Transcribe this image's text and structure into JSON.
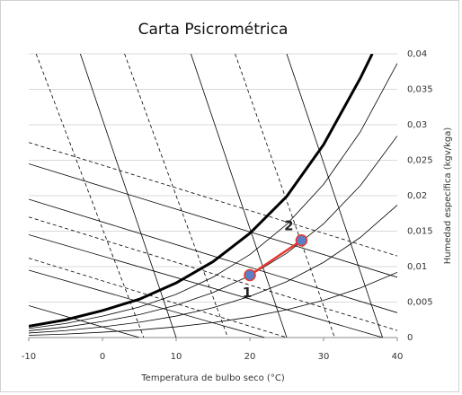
{
  "chart_data": {
    "type": "line",
    "title": "Carta Psicrométrica",
    "xlabel": "Temperatura de bulbo seco (°C)",
    "y2label": "Humedad específica (kgv/kga)",
    "xlim": [
      -10,
      40
    ],
    "xticks": [
      -10,
      0,
      10,
      20,
      30,
      40
    ],
    "y2lim": [
      0,
      0.04
    ],
    "y2ticks": [
      0,
      {
        "value": 0.005,
        "label": "0,005"
      },
      {
        "value": 0.01,
        "label": "0,01"
      },
      {
        "value": 0.015,
        "label": "0,015"
      },
      {
        "value": 0.02,
        "label": "0,02"
      },
      {
        "value": 0.025,
        "label": "0,025"
      },
      {
        "value": 0.03,
        "label": "0,03"
      },
      {
        "value": 0.035,
        "label": "0,035"
      },
      {
        "value": 0.04,
        "label": "0,04"
      }
    ],
    "grid": true,
    "series": [
      {
        "axis": "y2",
        "color": "#000000",
        "width": 3,
        "dash": false,
        "x": [
          -10,
          -5,
          0,
          5,
          10,
          15,
          20,
          25,
          30,
          35,
          36.6
        ],
        "values": [
          0.0016,
          0.0025,
          0.0038,
          0.0054,
          0.0077,
          0.0107,
          0.0147,
          0.0199,
          0.0272,
          0.0366,
          0.04
        ]
      },
      {
        "axis": "y2",
        "color": "#000000",
        "width": 0.8,
        "dash": false,
        "x": [
          -10,
          -5,
          0,
          5,
          10,
          15,
          20,
          25,
          30,
          35,
          40
        ],
        "values": [
          0.00128,
          0.00198,
          0.00302,
          0.00431,
          0.00609,
          0.00851,
          0.0117,
          0.01596,
          0.0216,
          0.02903,
          0.03867
        ]
      },
      {
        "axis": "y2",
        "color": "#000000",
        "width": 0.8,
        "dash": false,
        "x": [
          -10,
          -5,
          0,
          5,
          10,
          15,
          20,
          25,
          30,
          35,
          40
        ],
        "values": [
          0.00096,
          0.00148,
          0.00226,
          0.00323,
          0.00456,
          0.00634,
          0.00873,
          0.01189,
          0.01604,
          0.02144,
          0.02844
        ]
      },
      {
        "axis": "y2",
        "color": "#000000",
        "width": 0.8,
        "dash": false,
        "x": [
          -10,
          -5,
          0,
          5,
          10,
          15,
          20,
          25,
          30,
          35,
          40
        ],
        "values": [
          0.00064,
          0.00098,
          0.0015,
          0.00215,
          0.00303,
          0.00421,
          0.0058,
          0.00788,
          0.0106,
          0.01413,
          0.01868
        ]
      },
      {
        "axis": "y2",
        "color": "#000000",
        "width": 0.8,
        "dash": false,
        "x": [
          -10,
          -5,
          0,
          5,
          10,
          15,
          20,
          25,
          30,
          35,
          40
        ],
        "values": [
          0.00032,
          0.00049,
          0.00075,
          0.00107,
          0.00151,
          0.0021,
          0.00289,
          0.00392,
          0.00525,
          0.00699,
          0.0092
        ]
      },
      {
        "axis": "y2",
        "color": "#000000",
        "width": 0.8,
        "dash": true,
        "x": [
          -9,
          5.6
        ],
        "values": [
          0.04,
          0
        ]
      },
      {
        "axis": "y2",
        "color": "#000000",
        "width": 0.8,
        "dash": true,
        "x": [
          3,
          17
        ],
        "values": [
          0.04,
          0
        ]
      },
      {
        "axis": "y2",
        "color": "#000000",
        "width": 0.8,
        "dash": true,
        "x": [
          18,
          31.5
        ],
        "values": [
          0.04,
          0
        ]
      },
      {
        "axis": "y2",
        "color": "#000000",
        "width": 0.8,
        "dash": false,
        "x": [
          -3,
          10
        ],
        "values": [
          0.04,
          0
        ]
      },
      {
        "axis": "y2",
        "color": "#000000",
        "width": 0.8,
        "dash": false,
        "x": [
          12,
          25
        ],
        "values": [
          0.04,
          0
        ]
      },
      {
        "axis": "y2",
        "color": "#000000",
        "width": 0.8,
        "dash": false,
        "x": [
          25,
          38
        ],
        "values": [
          0.04,
          0
        ]
      },
      {
        "axis": "y2",
        "color": "#000000",
        "width": 0.8,
        "dash": false,
        "x": [
          -10,
          40
        ],
        "values": [
          0.0245,
          0.0085
        ]
      },
      {
        "axis": "y2",
        "color": "#000000",
        "width": 0.8,
        "dash": false,
        "x": [
          -10,
          40
        ],
        "values": [
          0.0195,
          0.0035
        ]
      },
      {
        "axis": "y2",
        "color": "#000000",
        "width": 0.8,
        "dash": false,
        "x": [
          -10,
          38
        ],
        "values": [
          0.0145,
          0
        ]
      },
      {
        "axis": "y2",
        "color": "#000000",
        "width": 0.8,
        "dash": false,
        "x": [
          -10,
          22
        ],
        "values": [
          0.0095,
          0
        ]
      },
      {
        "axis": "y2",
        "color": "#000000",
        "width": 0.8,
        "dash": false,
        "x": [
          -10,
          5
        ],
        "values": [
          0.0045,
          0
        ]
      },
      {
        "axis": "y2",
        "color": "#000000",
        "width": 0.8,
        "dash": true,
        "x": [
          -10,
          40
        ],
        "values": [
          0.0275,
          0.0115
        ]
      },
      {
        "axis": "y2",
        "color": "#000000",
        "width": 0.8,
        "dash": true,
        "x": [
          -10,
          40
        ],
        "values": [
          0.017,
          0.001
        ]
      },
      {
        "axis": "y2",
        "color": "#000000",
        "width": 0.8,
        "dash": true,
        "x": [
          -10,
          25
        ],
        "values": [
          0.0112,
          0
        ]
      },
      {
        "axis": "y2",
        "color": "#e8372c",
        "width": 2.5,
        "dash": false,
        "marker_color": "#5b7fc7",
        "x": [
          20,
          27
        ],
        "values": [
          0.0088,
          0.0137
        ],
        "labels": [
          "1",
          "2"
        ]
      }
    ]
  }
}
